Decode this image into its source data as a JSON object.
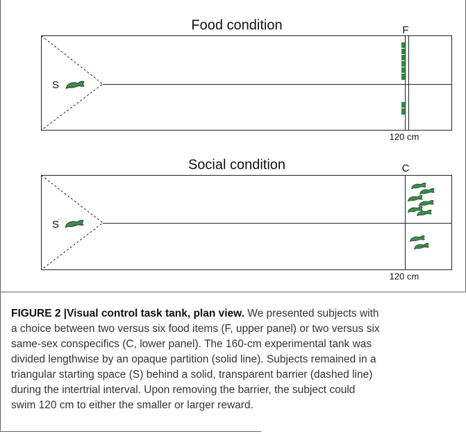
{
  "figure": {
    "top_panel": {
      "title": "Food condition",
      "goal_label": "F",
      "start_label": "S",
      "distance_label": "120 cm"
    },
    "bottom_panel": {
      "title": "Social condition",
      "goal_label": "C",
      "start_label": "S",
      "distance_label": "120 cm"
    },
    "caption": {
      "label": "FIGURE 2 |Visual control task tank, plan view.",
      "lines": [
        " We presented subjects with",
        "a choice between two versus six food items (F, upper panel) or two versus six",
        "same-sex conspecifics (C, lower panel). The 160-cm experimental tank was",
        "divided lengthwise by an opaque partition (solid line). Subjects remained in a",
        "triangular starting space (S) behind a solid, transparent barrier (dashed line)",
        "during the intertrial interval. Upon removing the barrier, the subject could",
        "swim 120 cm to either the smaller or larger reward."
      ]
    }
  }
}
